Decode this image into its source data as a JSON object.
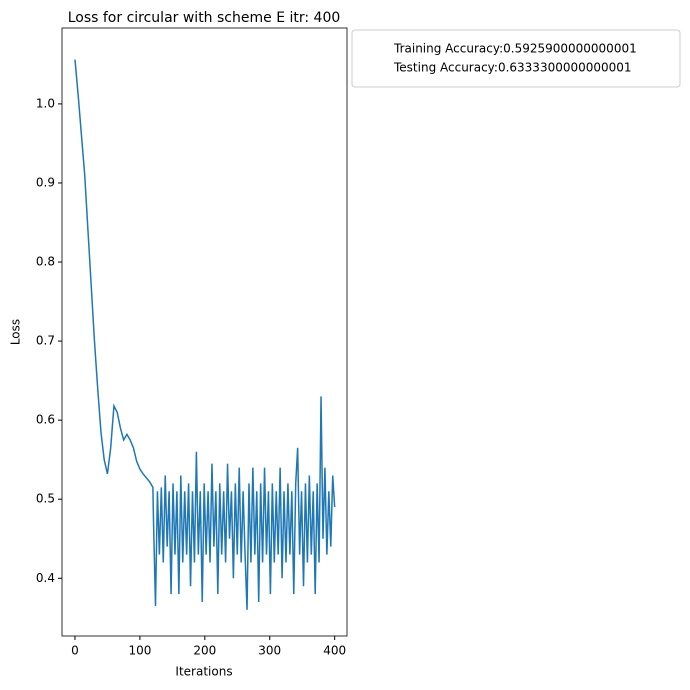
{
  "chart_data": {
    "type": "line",
    "title": "Loss for circular with scheme E itr: 400",
    "x_label": "Iterations",
    "y_label": "Loss",
    "legend": [
      "Training Accuracy:0.5925900000000001",
      "Testing Accuracy:0.6333300000000001"
    ],
    "x": [
      0,
      5,
      10,
      15,
      20,
      25,
      30,
      35,
      40,
      45,
      50,
      55,
      60,
      65,
      70,
      75,
      80,
      85,
      90,
      95,
      100,
      105,
      110,
      115,
      120,
      121,
      124,
      127,
      130,
      133,
      136,
      139,
      142,
      145,
      148,
      151,
      154,
      157,
      160,
      163,
      166,
      169,
      172,
      175,
      178,
      181,
      184,
      187,
      190,
      193,
      196,
      199,
      202,
      205,
      208,
      211,
      214,
      217,
      220,
      223,
      226,
      229,
      232,
      235,
      238,
      241,
      244,
      247,
      250,
      253,
      256,
      259,
      262,
      265,
      268,
      271,
      274,
      277,
      280,
      283,
      286,
      289,
      292,
      295,
      298,
      301,
      304,
      307,
      310,
      313,
      316,
      319,
      322,
      325,
      328,
      331,
      334,
      337,
      340,
      343,
      346,
      349,
      352,
      355,
      358,
      361,
      364,
      367,
      370,
      373,
      376,
      379,
      382,
      385,
      388,
      391,
      394,
      397,
      400
    ],
    "series": [
      {
        "color": "#1f77b4",
        "values": [
          1.056,
          1.01,
          0.96,
          0.91,
          0.84,
          0.77,
          0.7,
          0.64,
          0.585,
          0.55,
          0.532,
          0.565,
          0.618,
          0.61,
          0.59,
          0.575,
          0.582,
          0.575,
          0.565,
          0.548,
          0.538,
          0.532,
          0.527,
          0.522,
          0.515,
          0.47,
          0.365,
          0.51,
          0.43,
          0.515,
          0.42,
          0.53,
          0.44,
          0.51,
          0.38,
          0.52,
          0.43,
          0.51,
          0.38,
          0.53,
          0.42,
          0.51,
          0.43,
          0.52,
          0.39,
          0.51,
          0.42,
          0.56,
          0.43,
          0.51,
          0.37,
          0.52,
          0.43,
          0.51,
          0.42,
          0.545,
          0.44,
          0.51,
          0.38,
          0.52,
          0.43,
          0.51,
          0.42,
          0.545,
          0.45,
          0.51,
          0.4,
          0.52,
          0.43,
          0.54,
          0.42,
          0.51,
          0.43,
          0.36,
          0.52,
          0.42,
          0.54,
          0.43,
          0.51,
          0.37,
          0.52,
          0.42,
          0.54,
          0.43,
          0.51,
          0.38,
          0.52,
          0.42,
          0.51,
          0.43,
          0.54,
          0.4,
          0.51,
          0.42,
          0.52,
          0.43,
          0.51,
          0.38,
          0.52,
          0.565,
          0.43,
          0.51,
          0.39,
          0.52,
          0.42,
          0.53,
          0.43,
          0.51,
          0.38,
          0.52,
          0.42,
          0.63,
          0.45,
          0.54,
          0.43,
          0.51,
          0.44,
          0.53,
          0.49
        ]
      }
    ],
    "xlim": [
      -20,
      419
    ],
    "ylim": [
      0.327,
      1.096
    ],
    "xticks": [
      0,
      100,
      200,
      300,
      400
    ],
    "yticks": [
      0.4,
      0.5,
      0.6,
      0.7,
      0.8,
      0.9,
      {
        "value": 1,
        "label": "1.0"
      }
    ]
  }
}
